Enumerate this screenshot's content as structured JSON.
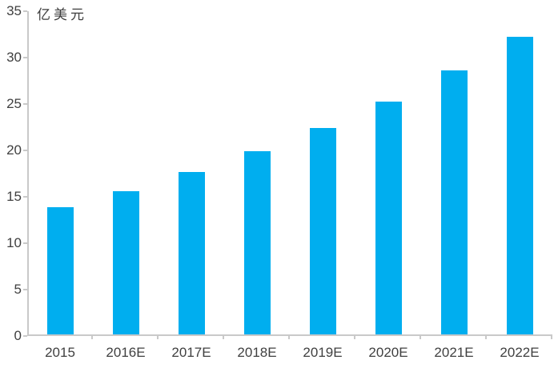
{
  "chart_data": {
    "type": "bar",
    "title": "亿美元",
    "ylabel_unit": "亿美元",
    "xlabel": "",
    "categories": [
      "2015",
      "2016E",
      "2017E",
      "2018E",
      "2019E",
      "2020E",
      "2021E",
      "2022E"
    ],
    "values": [
      13.9,
      15.6,
      17.7,
      19.9,
      22.4,
      25.3,
      28.6,
      32.2
    ],
    "ylim": [
      0,
      35
    ],
    "yticks": [
      0,
      5,
      10,
      15,
      20,
      25,
      30,
      35
    ],
    "grid": false,
    "legend": "none",
    "bar_color": "#00AEEF",
    "axis_color": "#c9c9c9",
    "label_color": "#404040"
  }
}
